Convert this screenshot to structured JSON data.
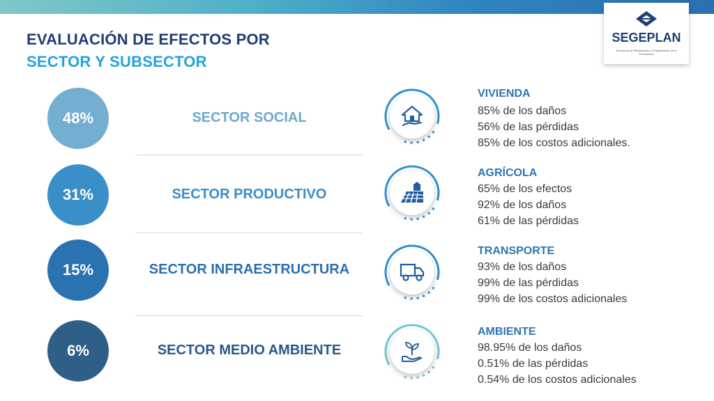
{
  "header": {
    "title_line1": "EVALUACIÓN DE EFECTOS POR",
    "title_line2": "SECTOR Y SUBSECTOR"
  },
  "logo": {
    "name": "SEGEPLAN",
    "subtitle": "Secretaría de Planificación y Programación de la Presidencia",
    "icon": "diamond-logo-icon"
  },
  "colors": {
    "title_dark": "#1f3e72",
    "title_accent": "#22a3dd",
    "social": "#74aed0",
    "productivo": "#3a8fc8",
    "infraestructura": "#2a72b0",
    "ambiente": "#2f5e86"
  },
  "sectors": [
    {
      "percent": "48%",
      "label": "SECTOR SOCIAL"
    },
    {
      "percent": "31%",
      "label": "SECTOR PRODUCTIVO"
    },
    {
      "percent": "15%",
      "label": "SECTOR INFRAESTRUCTURA"
    },
    {
      "percent": "6%",
      "label": "SECTOR MEDIO AMBIENTE"
    }
  ],
  "subsectors": [
    {
      "icon": "house-hand-icon",
      "title": "VIVIENDA",
      "lines": [
        "85% de los daños",
        "56% de las pérdidas",
        "85% de los costos adicionales."
      ]
    },
    {
      "icon": "farm-field-icon",
      "title": "AGRÍCOLA",
      "lines": [
        "65% de los efectos",
        "92% de los daños",
        "61% de las pérdidas"
      ]
    },
    {
      "icon": "truck-icon",
      "title": "TRANSPORTE",
      "lines": [
        "93% de los daños",
        "99% de las pérdidas",
        "99% de los costos adicionales"
      ]
    },
    {
      "icon": "plant-hand-icon",
      "title": "AMBIENTE",
      "lines": [
        "98.95% de los daños",
        "0.51% de las pérdidas",
        "0.54% de los costos adicionales"
      ]
    }
  ]
}
